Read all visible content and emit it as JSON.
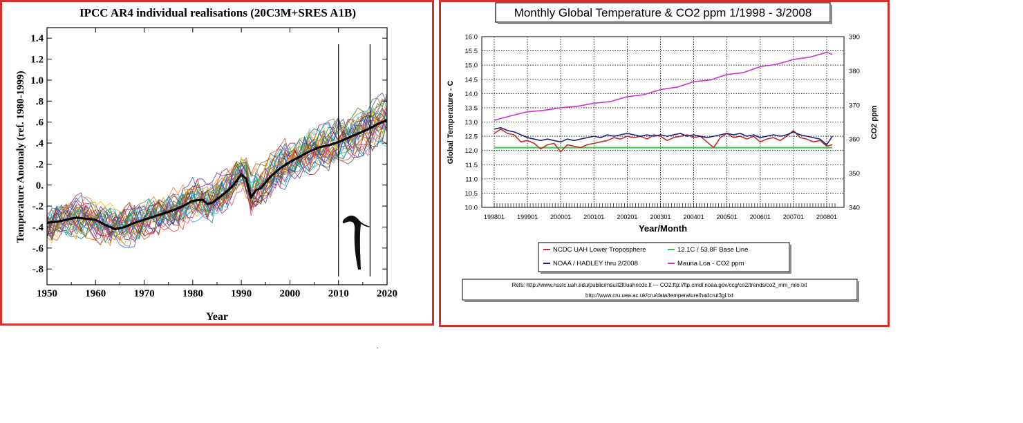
{
  "chart_data": [
    {
      "type": "line",
      "title": "IPCC AR4 individual realisations (20C3M+SRES A1B)",
      "xlabel": "Year",
      "ylabel": "Temperature Anomaly (ref. 1980-1999)",
      "xlim": [
        1950,
        2020
      ],
      "ylim": [
        -0.95,
        1.5
      ],
      "x_ticks": [
        "1950",
        "1960",
        "1970",
        "1980",
        "1990",
        "2000",
        "2010",
        "2020"
      ],
      "y_ticks": [
        {
          "v": 1.4,
          "label": "1.4"
        },
        {
          "v": 1.2,
          "label": "1.2"
        },
        {
          "v": 1.0,
          "label": "1.0"
        },
        {
          "v": 0.8,
          "label": ".8"
        },
        {
          "v": 0.6,
          "label": ".6"
        },
        {
          "v": 0.4,
          "label": ".4"
        },
        {
          "v": 0.2,
          "label": ".2"
        },
        {
          "v": 0.0,
          "label": "0."
        },
        {
          "v": -0.2,
          "label": "-.2"
        },
        {
          "v": -0.4,
          "label": "-.4"
        },
        {
          "v": -0.6,
          "label": "-.6"
        },
        {
          "v": -0.8,
          "label": "-.8"
        }
      ],
      "ensemble_mean": {
        "x": [
          1950,
          1952,
          1954,
          1956,
          1958,
          1960,
          1962,
          1963,
          1964,
          1966,
          1968,
          1970,
          1972,
          1974,
          1976,
          1978,
          1980,
          1982,
          1983,
          1984,
          1986,
          1988,
          1990,
          1991,
          1992,
          1993,
          1994,
          1996,
          1998,
          2000,
          2002,
          2004,
          2006,
          2008,
          2010,
          2012,
          2014,
          2016,
          2018,
          2020
        ],
        "y": [
          -0.36,
          -0.35,
          -0.33,
          -0.31,
          -0.32,
          -0.33,
          -0.38,
          -0.4,
          -0.42,
          -0.4,
          -0.36,
          -0.33,
          -0.3,
          -0.27,
          -0.24,
          -0.2,
          -0.15,
          -0.14,
          -0.18,
          -0.17,
          -0.1,
          -0.02,
          0.1,
          0.06,
          -0.12,
          -0.05,
          -0.03,
          0.08,
          0.16,
          0.22,
          0.27,
          0.32,
          0.36,
          0.38,
          0.41,
          0.45,
          0.49,
          0.53,
          0.58,
          0.62
        ]
      },
      "realisation_colors": [
        "#c62828",
        "#2e7d32",
        "#1565c0",
        "#f57f17",
        "#6a1b9a",
        "#00838f",
        "#ad1457",
        "#4e342e",
        "#9e9d24",
        "#d84315",
        "#283593",
        "#00695c",
        "#e65100",
        "#7cb342",
        "#5e35b1",
        "#26c6da",
        "#ec407a",
        "#8d6e63",
        "#ffb300",
        "#43a047",
        "#1e88e5",
        "#e53935",
        "#3949ab",
        "#fb8c00",
        "#8e24aa",
        "#00acc1",
        "#c0ca33",
        "#6d4c41",
        "#039be5",
        "#7b1fa2",
        "#ef6c00",
        "#558b2f",
        "#4fc3f7",
        "#b71c1c",
        "#33691e"
      ],
      "realisation_count": 35,
      "markers": [
        2010,
        2016.5
      ]
    },
    {
      "type": "line",
      "title": "Monthly Global Temperature & CO2 ppm 1/1998 - 3/2008",
      "xlabel": "Year/Month",
      "ylabel_left": "Global Temperature - C",
      "ylabel_right": "CO2 ppm",
      "ylim_left": [
        10.0,
        16.0
      ],
      "ylim_right": [
        340,
        390
      ],
      "x_ticks": [
        "199801",
        "199901",
        "200001",
        "200101",
        "200201",
        "200301",
        "200401",
        "200501",
        "200601",
        "200701",
        "200801"
      ],
      "y_ticks_left": [
        "10.0",
        "10.5",
        "11.0",
        "11.5",
        "12.0",
        "12.5",
        "13.0",
        "13.5",
        "14.0",
        "14.5",
        "15.0",
        "15.5",
        "16.0"
      ],
      "y_ticks_right": [
        "340",
        "350",
        "360",
        "370",
        "380",
        "390"
      ],
      "grid": true,
      "legend_position": "bottom",
      "series": [
        {
          "name": "NCDC UAH Lower Troposphere",
          "color": "#c62828",
          "axis": "left",
          "x": [
            1998.0,
            1998.2,
            1998.4,
            1998.6,
            1998.8,
            1999.0,
            1999.2,
            1999.4,
            1999.6,
            1999.8,
            2000.0,
            2000.2,
            2000.4,
            2000.6,
            2000.8,
            2001.0,
            2001.2,
            2001.4,
            2001.6,
            2001.8,
            2002.0,
            2002.2,
            2002.4,
            2002.6,
            2002.8,
            2003.0,
            2003.2,
            2003.4,
            2003.6,
            2003.8,
            2004.0,
            2004.2,
            2004.4,
            2004.6,
            2004.8,
            2005.0,
            2005.2,
            2005.4,
            2005.6,
            2005.8,
            2006.0,
            2006.2,
            2006.4,
            2006.6,
            2006.8,
            2007.0,
            2007.2,
            2007.4,
            2007.6,
            2007.8,
            2008.0,
            2008.17
          ],
          "y": [
            12.6,
            12.75,
            12.6,
            12.55,
            12.3,
            12.35,
            12.25,
            12.05,
            12.2,
            12.25,
            11.95,
            12.2,
            12.15,
            12.1,
            12.2,
            12.25,
            12.3,
            12.35,
            12.45,
            12.4,
            12.5,
            12.45,
            12.5,
            12.4,
            12.55,
            12.5,
            12.35,
            12.45,
            12.5,
            12.55,
            12.45,
            12.5,
            12.3,
            12.1,
            12.45,
            12.6,
            12.45,
            12.5,
            12.4,
            12.5,
            12.3,
            12.4,
            12.45,
            12.35,
            12.5,
            12.7,
            12.45,
            12.4,
            12.3,
            12.35,
            12.15,
            12.2
          ]
        },
        {
          "name": "NOAA / HADLEY thru 2/2008",
          "color": "#1a237e",
          "axis": "left",
          "x": [
            1998.0,
            1998.2,
            1998.4,
            1998.6,
            1998.8,
            1999.0,
            1999.2,
            1999.4,
            1999.6,
            1999.8,
            2000.0,
            2000.2,
            2000.4,
            2000.6,
            2000.8,
            2001.0,
            2001.2,
            2001.4,
            2001.6,
            2001.8,
            2002.0,
            2002.2,
            2002.4,
            2002.6,
            2002.8,
            2003.0,
            2003.2,
            2003.4,
            2003.6,
            2003.8,
            2004.0,
            2004.2,
            2004.4,
            2004.6,
            2004.8,
            2005.0,
            2005.2,
            2005.4,
            2005.6,
            2005.8,
            2006.0,
            2006.2,
            2006.4,
            2006.6,
            2006.8,
            2007.0,
            2007.2,
            2007.4,
            2007.6,
            2007.8,
            2008.0,
            2008.17
          ],
          "y": [
            12.75,
            12.8,
            12.7,
            12.65,
            12.55,
            12.45,
            12.4,
            12.35,
            12.4,
            12.35,
            12.3,
            12.4,
            12.35,
            12.4,
            12.45,
            12.5,
            12.45,
            12.55,
            12.5,
            12.55,
            12.6,
            12.55,
            12.5,
            12.55,
            12.5,
            12.55,
            12.5,
            12.55,
            12.6,
            12.5,
            12.55,
            12.5,
            12.45,
            12.5,
            12.55,
            12.6,
            12.55,
            12.6,
            12.5,
            12.55,
            12.45,
            12.5,
            12.55,
            12.5,
            12.55,
            12.65,
            12.55,
            12.5,
            12.45,
            12.4,
            12.2,
            12.5
          ]
        },
        {
          "name": "12.1C / 53.8F Base Line",
          "color": "#2ecc40",
          "axis": "left",
          "x": [
            1998.0,
            2008.17
          ],
          "y": [
            12.1,
            12.1
          ]
        },
        {
          "name": "Mauna Loa - CO2 ppm",
          "color": "#cc33cc",
          "axis": "right",
          "x": [
            1998.0,
            1998.5,
            1999.0,
            1999.5,
            2000.0,
            2000.5,
            2001.0,
            2001.5,
            2002.0,
            2002.5,
            2003.0,
            2003.5,
            2004.0,
            2004.5,
            2005.0,
            2005.5,
            2006.0,
            2006.5,
            2007.0,
            2007.5,
            2008.0,
            2008.17
          ],
          "y": [
            365.5,
            366.8,
            368.0,
            368.4,
            369.2,
            369.6,
            370.5,
            371.0,
            372.4,
            373.0,
            374.5,
            375.2,
            376.8,
            377.3,
            378.9,
            379.5,
            381.2,
            381.9,
            383.3,
            384.0,
            385.4,
            384.8
          ]
        }
      ],
      "refs": [
        "Refs: http://www.nsstc.uah.edu/public/msu/t2lt/uahncdc.lt --- CO2:ftp://ftp.cmdl.noaa.gov/ccg/co2/trends/co2_mm_mlo.txt",
        "http://www.cru.uea.ac.uk/cru/data/temperature/hadcrut3gl.txt"
      ]
    }
  ]
}
